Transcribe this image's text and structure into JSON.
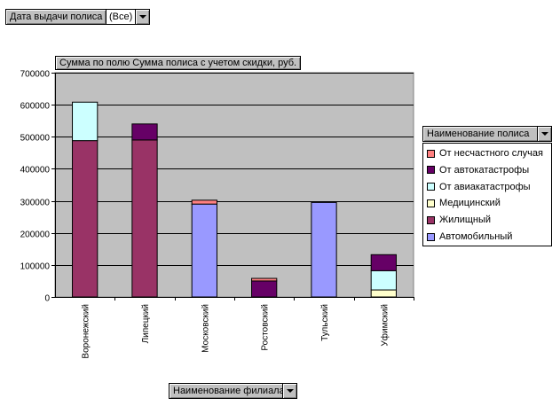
{
  "page_filter": {
    "label": "Дата выдачи полиса",
    "value": "(Все)"
  },
  "data_field_label": "Сумма по полю Сумма полиса с учетом скидки, руб.",
  "series_field_label": "Наименование полиса",
  "category_field_label": "Наименование филиала",
  "colors": {
    "plot_bg": "#c0c0c0",
    "gridline": "#000000",
    "button_face": "#c0c0c0"
  },
  "chart_data": {
    "type": "bar",
    "stacked": true,
    "categories": [
      "Воронежский",
      "Липецкий",
      "Московский",
      "Ростовский",
      "Тульский",
      "Уфимский"
    ],
    "ylim": [
      0,
      700000
    ],
    "yticks": [
      0,
      100000,
      200000,
      300000,
      400000,
      500000,
      600000,
      700000
    ],
    "ytick_labels": [
      "0",
      "100000",
      "200000",
      "300000",
      "400000",
      "500000",
      "600000",
      "700000"
    ],
    "grid": true,
    "legend_position": "right",
    "series": [
      {
        "name": "Автомобильный",
        "color": "#9999ff",
        "values": [
          0,
          0,
          290000,
          0,
          295000,
          0
        ]
      },
      {
        "name": "Жилищный",
        "color": "#993366",
        "values": [
          488000,
          490000,
          0,
          0,
          0,
          0
        ]
      },
      {
        "name": "Медицинский",
        "color": "#ffffcc",
        "values": [
          0,
          0,
          0,
          0,
          0,
          22000
        ]
      },
      {
        "name": "От авиакатастрофы",
        "color": "#ccffff",
        "values": [
          120000,
          0,
          0,
          0,
          0,
          60000
        ]
      },
      {
        "name": "От автокатастрофы",
        "color": "#660066",
        "values": [
          0,
          50000,
          0,
          50000,
          0,
          50000
        ]
      },
      {
        "name": "От несчастного случая",
        "color": "#ff8080",
        "values": [
          0,
          0,
          12000,
          8000,
          0,
          0
        ]
      }
    ]
  }
}
